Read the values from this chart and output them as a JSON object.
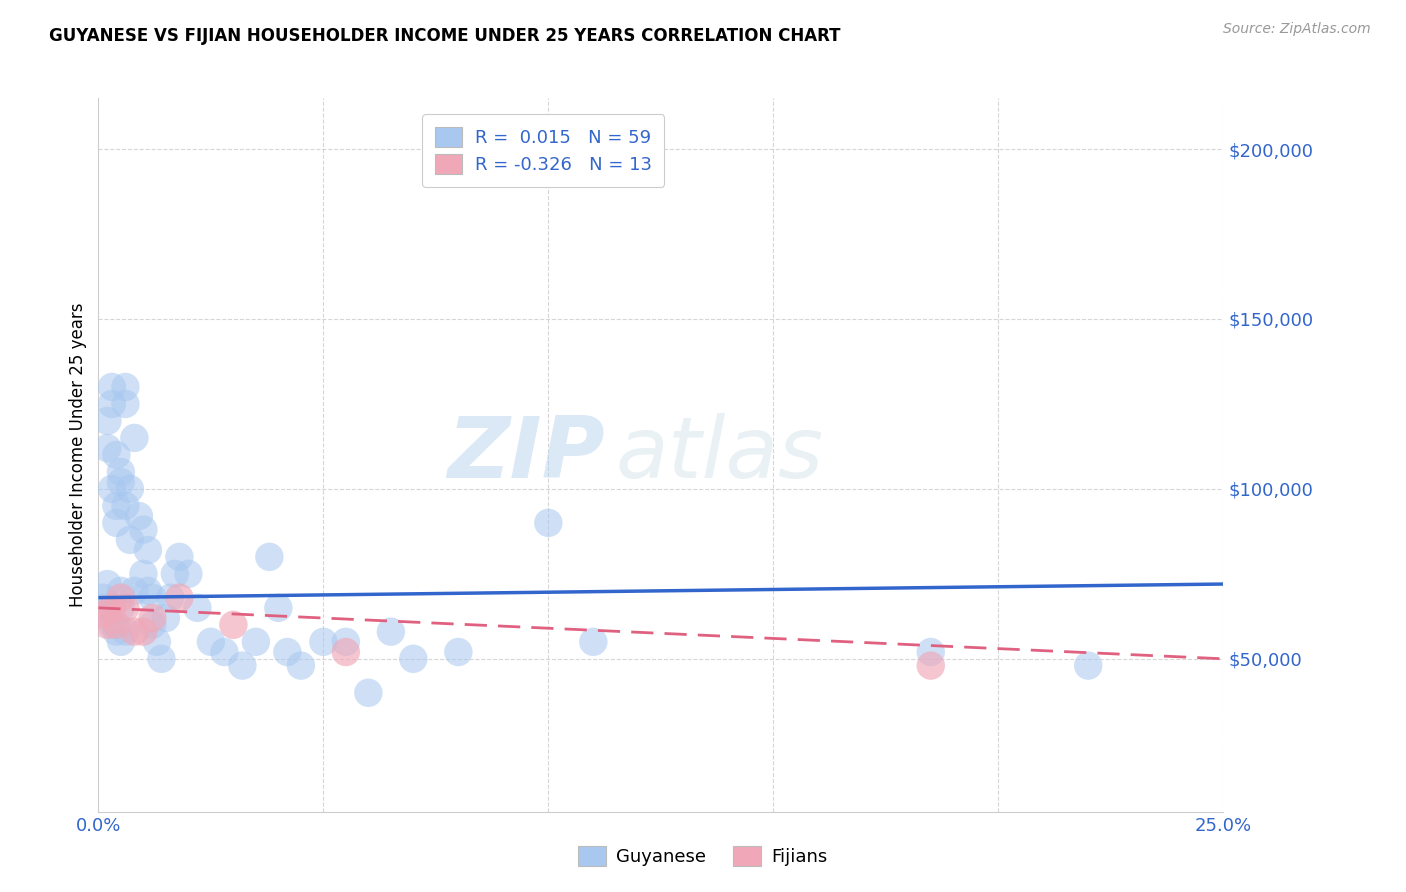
{
  "title": "GUYANESE VS FIJIAN HOUSEHOLDER INCOME UNDER 25 YEARS CORRELATION CHART",
  "source": "Source: ZipAtlas.com",
  "ylabel": "Householder Income Under 25 years",
  "ytick_values": [
    50000,
    100000,
    150000,
    200000
  ],
  "xmin": 0.0,
  "xmax": 0.25,
  "ymin": 5000,
  "ymax": 215000,
  "blue_color": "#a8c8f0",
  "pink_color": "#f0a8b8",
  "blue_line_color": "#3366cc",
  "pink_line_color": "#e06080",
  "watermark_zip": "ZIP",
  "watermark_atlas": "atlas",
  "guyanese_x": [
    0.001,
    0.001,
    0.002,
    0.002,
    0.002,
    0.003,
    0.003,
    0.003,
    0.003,
    0.004,
    0.004,
    0.004,
    0.004,
    0.005,
    0.005,
    0.005,
    0.005,
    0.005,
    0.006,
    0.006,
    0.006,
    0.006,
    0.007,
    0.007,
    0.008,
    0.008,
    0.009,
    0.01,
    0.01,
    0.011,
    0.011,
    0.012,
    0.012,
    0.013,
    0.014,
    0.015,
    0.016,
    0.017,
    0.018,
    0.02,
    0.022,
    0.025,
    0.028,
    0.032,
    0.035,
    0.038,
    0.04,
    0.042,
    0.045,
    0.05,
    0.055,
    0.06,
    0.065,
    0.07,
    0.08,
    0.1,
    0.11,
    0.185,
    0.22
  ],
  "guyanese_y": [
    68000,
    65000,
    120000,
    112000,
    72000,
    130000,
    125000,
    100000,
    60000,
    110000,
    95000,
    90000,
    58000,
    105000,
    102000,
    70000,
    65000,
    55000,
    130000,
    125000,
    95000,
    58000,
    100000,
    85000,
    115000,
    70000,
    92000,
    88000,
    75000,
    82000,
    70000,
    68000,
    60000,
    55000,
    50000,
    62000,
    68000,
    75000,
    80000,
    75000,
    65000,
    55000,
    52000,
    48000,
    55000,
    80000,
    65000,
    52000,
    48000,
    55000,
    55000,
    40000,
    58000,
    50000,
    52000,
    90000,
    55000,
    52000,
    48000
  ],
  "fijian_x": [
    0.001,
    0.002,
    0.003,
    0.004,
    0.005,
    0.006,
    0.008,
    0.01,
    0.012,
    0.018,
    0.03,
    0.055,
    0.185
  ],
  "fijian_y": [
    63000,
    60000,
    65000,
    60000,
    68000,
    65000,
    58000,
    58000,
    62000,
    68000,
    60000,
    52000,
    48000
  ],
  "guyanese_R": 0.015,
  "guyanese_N": 59,
  "fijian_R": -0.326,
  "fijian_N": 13
}
